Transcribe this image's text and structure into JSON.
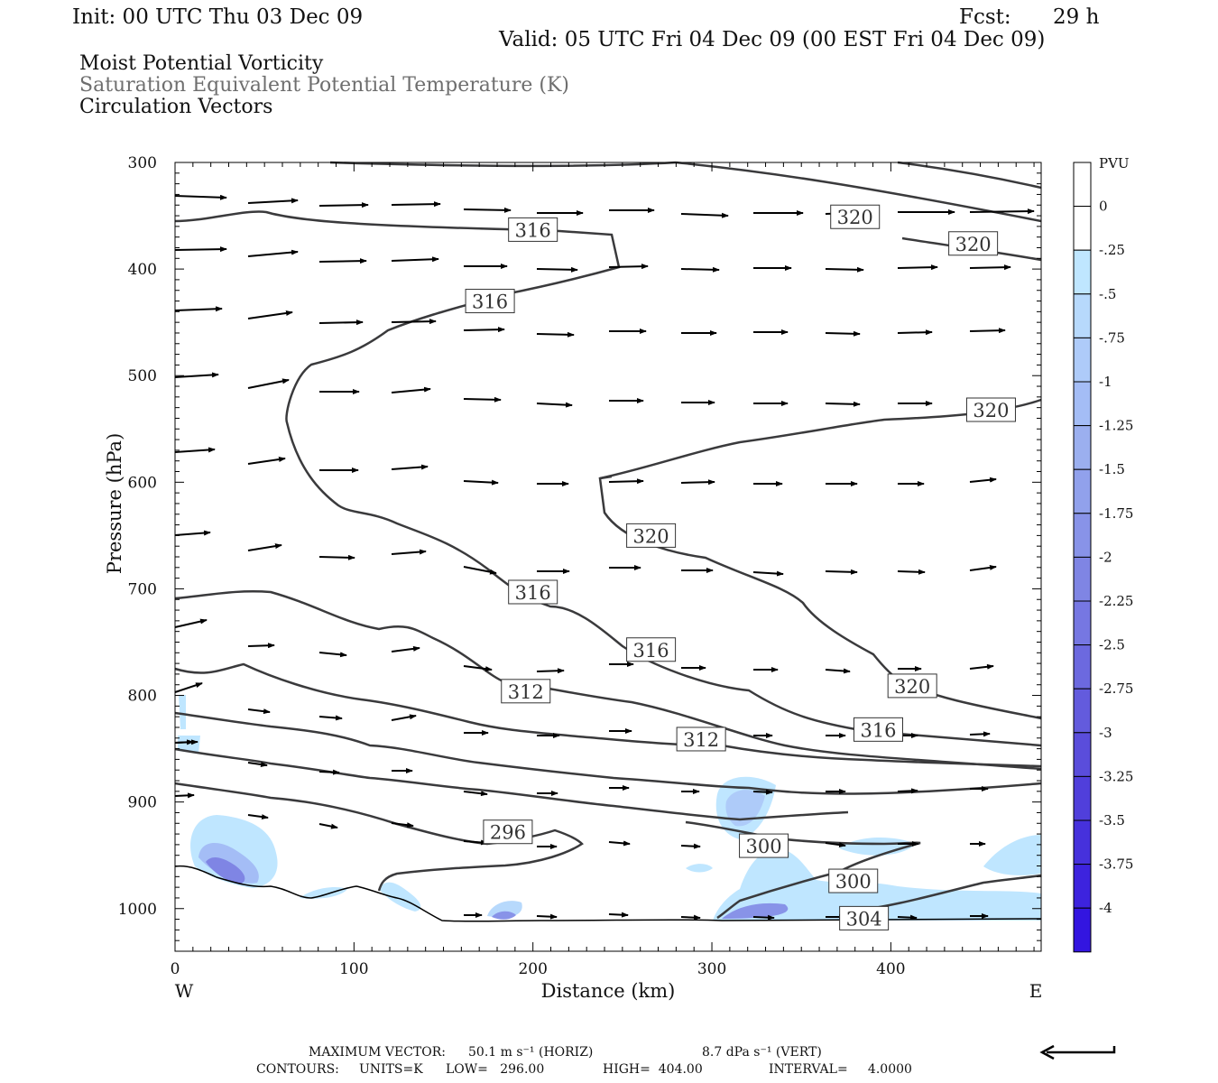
{
  "header": {
    "init": "Init: 00 UTC Thu 03 Dec 09",
    "fcst_label": "Fcst:",
    "fcst_value": "29 h",
    "valid": "Valid: 05 UTC Fri 04 Dec 09 (00 EST Fri 04 Dec 09)"
  },
  "titles": {
    "line1": "Moist Potential Vorticity",
    "line2": "Saturation Equivalent Potential Temperature (K)",
    "line3": "Circulation Vectors"
  },
  "colors": {
    "contour": "#3a3a3c",
    "vector": "#000000",
    "title2": "#6e6e6e",
    "pv_shades": [
      "#ffffff",
      "#ffffff",
      "#bfe6ff",
      "#b7d9fc",
      "#aecbf9",
      "#a4bdf6",
      "#9bafef",
      "#91a1ec",
      "#8893e8",
      "#7f85e4",
      "#7677e2",
      "#6c69df",
      "#635bdd",
      "#5a4ddb",
      "#503fdb",
      "#4631dc",
      "#3d23de",
      "#3315e0"
    ]
  },
  "chart_data": {
    "type": "cross-section",
    "xlabel": "Distance (km)",
    "ylabel": "Pressure (hPa)",
    "xlim": [
      0,
      484
    ],
    "ylim": [
      1040,
      300
    ],
    "x_ticks": [
      0,
      100,
      200,
      300,
      400
    ],
    "y_ticks": [
      300,
      400,
      500,
      600,
      700,
      800,
      900,
      1000
    ],
    "x_end_labels": {
      "left": "W",
      "right": "E"
    },
    "colorbar": {
      "unit": "PVU",
      "levels": [
        "0",
        "-.25",
        "-.5",
        "-.75",
        "-1",
        "-1.25",
        "-1.5",
        "-1.75",
        "-2",
        "-2.25",
        "-2.5",
        "-2.75",
        "-3",
        "-3.25",
        "-3.5",
        "-3.75",
        "-4"
      ]
    },
    "contour_labels": [
      {
        "text": "316",
        "x": 200,
        "p": 363
      },
      {
        "text": "316",
        "x": 176,
        "p": 430
      },
      {
        "text": "320",
        "x": 380,
        "p": 351
      },
      {
        "text": "320",
        "x": 446,
        "p": 376
      },
      {
        "text": "320",
        "x": 456,
        "p": 532
      },
      {
        "text": "320",
        "x": 266,
        "p": 650
      },
      {
        "text": "316",
        "x": 200,
        "p": 703
      },
      {
        "text": "316",
        "x": 266,
        "p": 757
      },
      {
        "text": "320",
        "x": 412,
        "p": 791
      },
      {
        "text": "312",
        "x": 196,
        "p": 796
      },
      {
        "text": "316",
        "x": 393,
        "p": 832
      },
      {
        "text": "312",
        "x": 294,
        "p": 841
      },
      {
        "text": "296",
        "x": 186,
        "p": 928
      },
      {
        "text": "300",
        "x": 329,
        "p": 941
      },
      {
        "text": "300",
        "x": 379,
        "p": 974
      },
      {
        "text": "304",
        "x": 385,
        "p": 1009
      }
    ],
    "footer": {
      "max_vector_label": "MAXIMUM VECTOR:",
      "max_vector_horiz": "50.1 m s⁻¹ (HORIZ)",
      "max_vector_vert": "8.7 dPa s⁻¹ (VERT)",
      "contours_label": "CONTOURS:",
      "units": "UNITS=K",
      "low": "LOW=   296.00",
      "high": "HIGH=  404.00",
      "interval": "INTERVAL=     4.0000"
    }
  }
}
